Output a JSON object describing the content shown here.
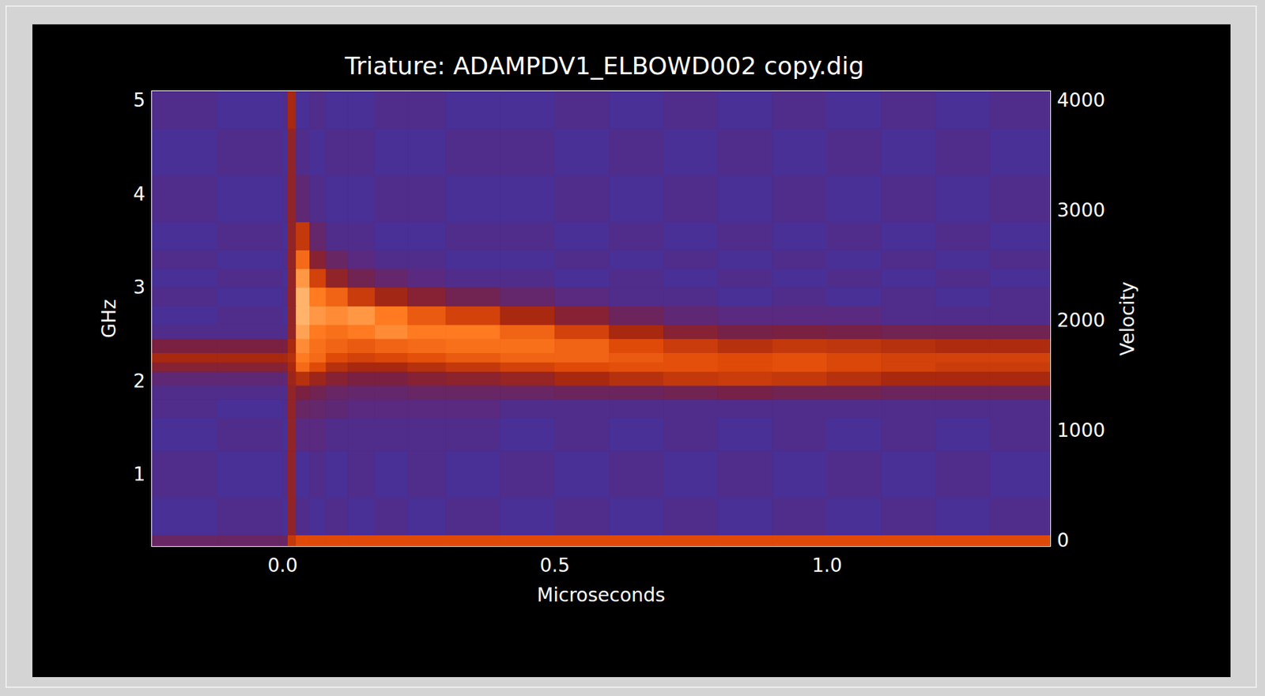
{
  "chart_data": {
    "type": "heatmap",
    "title": "Triature: ADAMPDV1_ELBOWD002 copy.dig",
    "x_label": "Microseconds",
    "y_label": "GHz",
    "y2_label": "Velocity",
    "xlim": [
      -0.24,
      1.41
    ],
    "xticks": [
      {
        "value": 0,
        "label": "0.0"
      },
      {
        "value": 0.5,
        "label": "0.5"
      },
      {
        "value": 1,
        "label": "1.0"
      }
    ],
    "ylim": [
      0.23,
      5.1
    ],
    "yticks": [
      1,
      2,
      3,
      4,
      5
    ],
    "y2lim": [
      -50,
      4085
    ],
    "y2ticks": [
      0,
      1000,
      2000,
      3000,
      4000
    ],
    "grid": false,
    "x_bins": [
      -0.24,
      -0.12,
      0.0,
      0.01,
      0.025,
      0.05,
      0.08,
      0.12,
      0.17,
      0.23,
      0.3,
      0.4,
      0.5,
      0.6,
      0.7,
      0.8,
      0.9,
      1.0,
      1.1,
      1.2,
      1.3,
      1.41
    ],
    "y_bins": [
      0.23,
      0.35,
      0.75,
      1.25,
      1.6,
      1.8,
      1.95,
      2.1,
      2.2,
      2.3,
      2.45,
      2.6,
      2.8,
      3.0,
      3.2,
      3.4,
      3.7,
      4.2,
      4.7,
      5.1
    ],
    "zlim": [
      0,
      1
    ],
    "cells": [
      [
        0.2,
        0.2,
        0.2,
        0.6,
        0.7,
        0.7,
        0.7,
        0.7,
        0.7,
        0.7,
        0.7,
        0.7,
        0.7,
        0.7,
        0.7,
        0.7,
        0.7,
        0.7,
        0.7,
        0.7,
        0.7
      ],
      [
        0.08,
        0.1,
        0.08,
        0.4,
        0.1,
        0.08,
        0.1,
        0.08,
        0.1,
        0.08,
        0.1,
        0.08,
        0.1,
        0.08,
        0.1,
        0.08,
        0.1,
        0.08,
        0.1,
        0.08,
        0.1
      ],
      [
        0.1,
        0.08,
        0.1,
        0.4,
        0.08,
        0.1,
        0.08,
        0.1,
        0.08,
        0.1,
        0.08,
        0.1,
        0.08,
        0.1,
        0.08,
        0.1,
        0.08,
        0.1,
        0.08,
        0.1,
        0.08
      ],
      [
        0.08,
        0.1,
        0.08,
        0.4,
        0.12,
        0.12,
        0.1,
        0.1,
        0.1,
        0.1,
        0.1,
        0.08,
        0.1,
        0.08,
        0.1,
        0.08,
        0.1,
        0.08,
        0.1,
        0.08,
        0.1
      ],
      [
        0.1,
        0.08,
        0.1,
        0.4,
        0.2,
        0.18,
        0.15,
        0.12,
        0.12,
        0.12,
        0.12,
        0.1,
        0.1,
        0.1,
        0.1,
        0.1,
        0.1,
        0.1,
        0.1,
        0.1,
        0.1
      ],
      [
        0.1,
        0.1,
        0.1,
        0.4,
        0.3,
        0.25,
        0.2,
        0.18,
        0.18,
        0.2,
        0.2,
        0.2,
        0.22,
        0.22,
        0.25,
        0.28,
        0.25,
        0.25,
        0.22,
        0.22,
        0.22
      ],
      [
        0.15,
        0.15,
        0.15,
        0.45,
        0.55,
        0.45,
        0.35,
        0.3,
        0.3,
        0.35,
        0.38,
        0.42,
        0.5,
        0.55,
        0.6,
        0.62,
        0.6,
        0.55,
        0.5,
        0.5,
        0.5
      ],
      [
        0.35,
        0.35,
        0.35,
        0.5,
        0.8,
        0.7,
        0.55,
        0.5,
        0.5,
        0.55,
        0.6,
        0.65,
        0.7,
        0.72,
        0.72,
        0.7,
        0.72,
        0.68,
        0.65,
        0.62,
        0.62
      ],
      [
        0.5,
        0.5,
        0.5,
        0.55,
        0.85,
        0.8,
        0.7,
        0.65,
        0.68,
        0.72,
        0.75,
        0.78,
        0.78,
        0.75,
        0.72,
        0.7,
        0.72,
        0.68,
        0.65,
        0.65,
        0.65
      ],
      [
        0.3,
        0.3,
        0.3,
        0.5,
        0.88,
        0.82,
        0.78,
        0.75,
        0.78,
        0.8,
        0.82,
        0.82,
        0.78,
        0.7,
        0.62,
        0.55,
        0.6,
        0.58,
        0.55,
        0.52,
        0.52
      ],
      [
        0.1,
        0.1,
        0.1,
        0.4,
        0.92,
        0.85,
        0.82,
        0.85,
        0.88,
        0.85,
        0.85,
        0.78,
        0.65,
        0.5,
        0.35,
        0.28,
        0.3,
        0.28,
        0.25,
        0.25,
        0.25
      ],
      [
        0.08,
        0.1,
        0.08,
        0.4,
        0.95,
        0.9,
        0.88,
        0.9,
        0.85,
        0.75,
        0.65,
        0.5,
        0.35,
        0.22,
        0.15,
        0.12,
        0.12,
        0.12,
        0.1,
        0.1,
        0.1
      ],
      [
        0.1,
        0.08,
        0.1,
        0.4,
        0.95,
        0.85,
        0.78,
        0.62,
        0.48,
        0.35,
        0.25,
        0.18,
        0.12,
        0.1,
        0.1,
        0.08,
        0.1,
        0.08,
        0.1,
        0.08,
        0.1
      ],
      [
        0.08,
        0.1,
        0.08,
        0.4,
        0.9,
        0.65,
        0.4,
        0.25,
        0.18,
        0.12,
        0.1,
        0.1,
        0.08,
        0.1,
        0.08,
        0.1,
        0.08,
        0.1,
        0.08,
        0.1,
        0.08
      ],
      [
        0.1,
        0.08,
        0.1,
        0.4,
        0.8,
        0.35,
        0.2,
        0.12,
        0.1,
        0.1,
        0.08,
        0.08,
        0.1,
        0.08,
        0.1,
        0.08,
        0.1,
        0.08,
        0.1,
        0.08,
        0.1
      ],
      [
        0.08,
        0.1,
        0.08,
        0.4,
        0.6,
        0.18,
        0.1,
        0.1,
        0.08,
        0.08,
        0.1,
        0.1,
        0.08,
        0.1,
        0.08,
        0.1,
        0.08,
        0.1,
        0.08,
        0.1,
        0.08
      ],
      [
        0.1,
        0.08,
        0.1,
        0.4,
        0.15,
        0.1,
        0.08,
        0.08,
        0.1,
        0.1,
        0.08,
        0.08,
        0.1,
        0.08,
        0.1,
        0.08,
        0.1,
        0.08,
        0.1,
        0.08,
        0.1
      ],
      [
        0.08,
        0.1,
        0.08,
        0.4,
        0.1,
        0.08,
        0.1,
        0.1,
        0.08,
        0.08,
        0.1,
        0.1,
        0.08,
        0.1,
        0.08,
        0.1,
        0.08,
        0.1,
        0.08,
        0.1,
        0.08
      ],
      [
        0.1,
        0.08,
        0.1,
        0.5,
        0.08,
        0.1,
        0.08,
        0.08,
        0.1,
        0.1,
        0.08,
        0.08,
        0.1,
        0.08,
        0.1,
        0.08,
        0.1,
        0.08,
        0.1,
        0.08,
        0.1
      ]
    ]
  }
}
